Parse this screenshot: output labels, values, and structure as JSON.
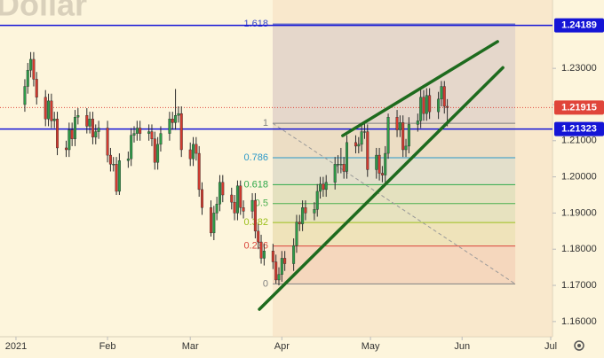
{
  "chart_data": {
    "type": "candlestick",
    "title": "Dollar",
    "up_color": "#2e9b48",
    "down_color": "#d23a2f",
    "xlim": [
      -5.4,
      181.6
    ],
    "xticks": [
      {
        "value": 0,
        "label": "2021"
      },
      {
        "value": 31,
        "label": "Feb"
      },
      {
        "value": 59,
        "label": "Mar"
      },
      {
        "value": 90,
        "label": "Apr"
      },
      {
        "value": 120,
        "label": "May"
      },
      {
        "value": 151,
        "label": "Jun"
      },
      {
        "value": 181,
        "label": "Jul"
      }
    ],
    "ylim": [
      1.1558,
      1.2489
    ],
    "yticks": [
      {
        "value": 1.16,
        "label": "1.16000"
      },
      {
        "value": 1.17,
        "label": "1.17000"
      },
      {
        "value": 1.18,
        "label": "1.18000"
      },
      {
        "value": 1.19,
        "label": "1.19000"
      },
      {
        "value": 1.2,
        "label": "1.20000"
      },
      {
        "value": 1.21,
        "label": "1.21000"
      },
      {
        "value": 1.22,
        "label": "1.22000"
      },
      {
        "value": 1.23,
        "label": "1.23000"
      }
    ],
    "x": [
      3,
      4,
      5,
      6,
      7,
      10,
      11,
      12,
      13,
      14,
      17,
      18,
      19,
      20,
      21,
      24,
      25,
      26,
      27,
      28,
      31,
      32,
      33,
      34,
      35,
      38,
      39,
      40,
      41,
      42,
      45,
      46,
      47,
      48,
      49,
      52,
      53,
      54,
      55,
      56,
      59,
      60,
      61,
      62,
      63,
      66,
      67,
      68,
      69,
      70,
      73,
      74,
      75,
      76,
      77,
      80,
      81,
      82,
      83,
      84,
      87,
      88,
      89,
      90,
      91,
      94,
      95,
      96,
      97,
      98,
      101,
      102,
      103,
      104,
      105,
      108,
      109,
      110,
      111,
      112,
      115,
      116,
      117,
      118,
      119,
      122,
      123,
      124,
      125,
      126,
      129,
      130,
      131,
      132,
      133,
      136,
      137,
      138,
      139,
      140,
      143,
      144,
      145,
      146
    ],
    "open": [
      1.22,
      1.225,
      1.2295,
      1.2325,
      1.227,
      1.222,
      1.216,
      1.221,
      1.2155,
      1.216,
      1.208,
      1.2075,
      1.213,
      1.2105,
      1.2165,
      1.217,
      1.214,
      1.216,
      1.211,
      1.2125,
      1.2135,
      1.206,
      1.2035,
      1.2035,
      1.196,
      1.2045,
      1.205,
      1.2115,
      1.212,
      1.2135,
      1.212,
      1.2125,
      1.2105,
      1.204,
      1.209,
      1.212,
      1.216,
      1.215,
      1.217,
      1.2175,
      1.2075,
      1.205,
      1.209,
      1.2065,
      1.1965,
      1.1915,
      1.1845,
      1.19,
      1.1925,
      1.1985,
      1.195,
      1.193,
      1.19,
      1.1975,
      1.1915,
      1.1905,
      1.1935,
      1.185,
      1.182,
      1.1775,
      1.1795,
      1.1765,
      1.1715,
      1.173,
      1.1775,
      1.176,
      1.181,
      1.1875,
      1.187,
      1.1915,
      1.19,
      1.191,
      1.196,
      1.198,
      1.1965,
      1.1985,
      1.2035,
      1.2035,
      1.2035,
      1.2015,
      1.2095,
      1.2085,
      1.209,
      1.2125,
      1.2125,
      1.202,
      1.206,
      1.201,
      1.2005,
      1.2065,
      1.2165,
      1.213,
      1.215,
      1.2075,
      1.2085,
      1.2145,
      1.2155,
      1.222,
      1.2175,
      1.2225,
      1.218,
      1.2215,
      1.225,
      1.2195
    ],
    "high": [
      1.227,
      1.2315,
      1.2345,
      1.2345,
      1.229,
      1.224,
      1.223,
      1.223,
      1.218,
      1.218,
      1.21,
      1.215,
      1.215,
      1.2185,
      1.219,
      1.219,
      1.218,
      1.218,
      1.2145,
      1.2155,
      1.2155,
      1.208,
      1.2055,
      1.2055,
      1.2065,
      1.207,
      1.2135,
      1.214,
      1.2155,
      1.2155,
      1.2145,
      1.2145,
      1.2125,
      1.211,
      1.214,
      1.218,
      1.218,
      1.2243,
      1.2195,
      1.2195,
      1.2095,
      1.211,
      1.211,
      1.2085,
      1.1985,
      1.1935,
      1.192,
      1.1945,
      1.2005,
      1.2005,
      1.197,
      1.195,
      1.199,
      1.199,
      1.1935,
      1.1955,
      1.1955,
      1.187,
      1.184,
      1.1815,
      1.1815,
      1.1785,
      1.175,
      1.1795,
      1.1795,
      1.183,
      1.1895,
      1.1895,
      1.1935,
      1.1935,
      1.193,
      1.198,
      1.2,
      1.2,
      1.2005,
      1.2055,
      1.206,
      1.208,
      1.2055,
      1.2115,
      1.2115,
      1.211,
      1.2145,
      1.215,
      1.2145,
      1.208,
      1.208,
      1.203,
      1.2085,
      1.2175,
      1.2185,
      1.217,
      1.217,
      1.2105,
      1.2165,
      1.2175,
      1.2245,
      1.224,
      1.2245,
      1.2245,
      1.2235,
      1.2265,
      1.2265,
      1.2215
    ],
    "low": [
      1.218,
      1.223,
      1.2275,
      1.225,
      1.22,
      1.214,
      1.214,
      1.2135,
      1.2135,
      1.206,
      1.2055,
      1.2055,
      1.2085,
      1.2085,
      1.2145,
      1.212,
      1.212,
      1.209,
      1.209,
      1.2105,
      1.204,
      1.2015,
      1.2015,
      1.195,
      1.195,
      1.2025,
      1.203,
      1.2095,
      1.21,
      1.21,
      1.21,
      1.2085,
      1.202,
      1.202,
      1.207,
      1.21,
      1.213,
      1.213,
      1.215,
      1.2055,
      1.203,
      1.203,
      1.2045,
      1.1945,
      1.1895,
      1.1835,
      1.1825,
      1.188,
      1.1905,
      1.193,
      1.191,
      1.188,
      1.188,
      1.1895,
      1.1885,
      1.1885,
      1.183,
      1.18,
      1.176,
      1.1755,
      1.1745,
      1.1705,
      1.17,
      1.171,
      1.174,
      1.174,
      1.179,
      1.185,
      1.185,
      1.188,
      1.188,
      1.189,
      1.194,
      1.1945,
      1.1945,
      1.1965,
      1.201,
      1.201,
      1.1995,
      1.1995,
      1.2065,
      1.2065,
      1.207,
      1.2105,
      1.2,
      1.1995,
      1.199,
      1.1985,
      1.1985,
      1.205,
      1.211,
      1.211,
      1.2055,
      1.2055,
      1.2065,
      1.2125,
      1.2135,
      1.2155,
      1.2155,
      1.216,
      1.216,
      1.2195,
      1.2175,
      1.214
    ],
    "close": [
      1.225,
      1.2295,
      1.2325,
      1.227,
      1.222,
      1.216,
      1.221,
      1.2155,
      1.216,
      1.208,
      1.2075,
      1.213,
      1.2105,
      1.2165,
      1.217,
      1.214,
      1.216,
      1.211,
      1.2125,
      1.2135,
      1.206,
      1.2035,
      1.2035,
      1.196,
      1.2045,
      1.205,
      1.2115,
      1.212,
      1.2135,
      1.212,
      1.2125,
      1.2105,
      1.204,
      1.209,
      1.212,
      1.216,
      1.215,
      1.217,
      1.2175,
      1.2075,
      1.205,
      1.209,
      1.2065,
      1.1965,
      1.1915,
      1.1845,
      1.19,
      1.1925,
      1.1985,
      1.195,
      1.193,
      1.19,
      1.1975,
      1.1915,
      1.1905,
      1.1935,
      1.185,
      1.182,
      1.1775,
      1.1795,
      1.1765,
      1.1715,
      1.173,
      1.1775,
      1.176,
      1.181,
      1.1875,
      1.187,
      1.1915,
      1.19,
      1.191,
      1.196,
      1.198,
      1.1965,
      1.1985,
      1.2035,
      1.2035,
      1.2035,
      1.2015,
      1.2095,
      1.2085,
      1.209,
      1.2125,
      1.2125,
      1.202,
      1.206,
      1.201,
      1.2005,
      1.2065,
      1.2165,
      1.213,
      1.215,
      1.2075,
      1.2085,
      1.2145,
      1.2155,
      1.222,
      1.2175,
      1.2225,
      1.218,
      1.2215,
      1.225,
      1.2195,
      1.2192
    ],
    "hlines": [
      {
        "value": 1.24189,
        "color": "#1515d6",
        "style": "solid"
      },
      {
        "value": 1.21915,
        "color": "#e0453a",
        "style": "dotted"
      },
      {
        "value": 1.21323,
        "color": "#1515d6",
        "style": "solid"
      }
    ],
    "fibonacci": {
      "low": 1.1704,
      "high": 1.2148,
      "start": 86.9,
      "end": 169,
      "levels": [
        {
          "level": 0,
          "color": "#808080"
        },
        {
          "level": 0.236,
          "color": "#d9453b"
        },
        {
          "level": 0.382,
          "color": "#9cbf1c"
        },
        {
          "level": 0.5,
          "color": "#4caf50"
        },
        {
          "level": 0.618,
          "color": "#2ea84a"
        },
        {
          "level": 0.786,
          "color": "#2a98c8"
        },
        {
          "level": 1,
          "color": "#808080"
        },
        {
          "level": 1.618,
          "color": "#3949c9"
        }
      ]
    },
    "trendlines": [
      {
        "x": [
          82.4,
          164.8
        ],
        "y": [
          1.1634,
          1.2302
        ],
        "color": "#1e6b1e"
      },
      {
        "x": [
          110.6,
          163.0
        ],
        "y": [
          1.2114,
          1.2374
        ],
        "color": "#1e6b1e"
      }
    ]
  }
}
